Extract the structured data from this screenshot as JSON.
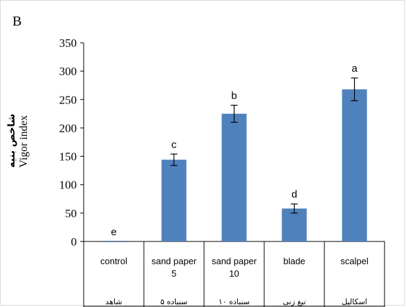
{
  "panel_label": "B",
  "chart_data": {
    "type": "bar",
    "title": "",
    "ylabel_fa": "شاخص بنیه",
    "ylabel": "Vigor index",
    "xlabel": "",
    "ylim": [
      0,
      350
    ],
    "yticks": [
      0,
      50,
      100,
      150,
      200,
      250,
      300,
      350
    ],
    "grid": false,
    "bar_color": "#4f81bd",
    "categories": [
      {
        "en_line1": "control",
        "en_line2": "",
        "fa": "شاهد"
      },
      {
        "en_line1": "sand paper",
        "en_line2": "5",
        "fa": "سنباده ۵"
      },
      {
        "en_line1": "sand paper",
        "en_line2": "10",
        "fa": "سنباده ۱۰"
      },
      {
        "en_line1": "blade",
        "en_line2": "",
        "fa": "تیغ زنی"
      },
      {
        "en_line1": "scalpel",
        "en_line2": "",
        "fa": "اسکالپل"
      }
    ],
    "values": [
      0,
      144,
      225,
      58,
      268
    ],
    "errors": [
      0,
      10,
      15,
      8,
      20
    ],
    "significance": [
      "e",
      "c",
      "b",
      "d",
      "a"
    ]
  }
}
